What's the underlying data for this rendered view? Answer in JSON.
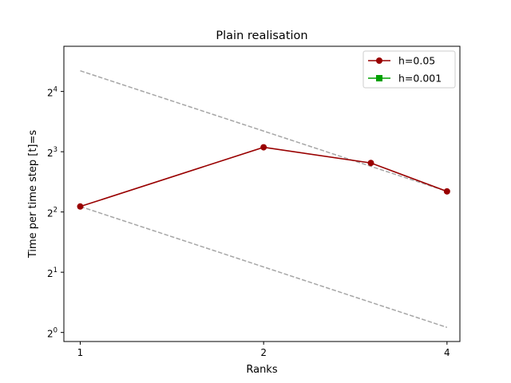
{
  "chart_data": {
    "type": "line",
    "title": "Plain realisation",
    "xlabel": "Ranks",
    "ylabel": "Time per time step [t]=s",
    "x_scale": "log2",
    "y_scale": "log2",
    "xlim": [
      0.94,
      4.2
    ],
    "ylim_exponent": [
      -0.15,
      4.75
    ],
    "x_ticks": [
      {
        "value": 1,
        "label": "1"
      },
      {
        "value": 2,
        "label": "2"
      },
      {
        "value": 4,
        "label": "4"
      }
    ],
    "y_ticks": [
      {
        "exponent": 0,
        "base": "2",
        "exp": "0"
      },
      {
        "exponent": 1,
        "base": "2",
        "exp": "1"
      },
      {
        "exponent": 2,
        "base": "2",
        "exp": "2"
      },
      {
        "exponent": 3,
        "base": "2",
        "exp": "3"
      },
      {
        "exponent": 4,
        "base": "2",
        "exp": "4"
      }
    ],
    "grid": false,
    "legend_position": "top-right",
    "series": [
      {
        "name": "h=0.05",
        "color": "#990000",
        "marker": "circle",
        "points": [
          {
            "x": 1,
            "y": 4.26
          },
          {
            "x": 2,
            "y": 8.42
          },
          {
            "x": 3,
            "y": 7.03
          },
          {
            "x": 4,
            "y": 5.07
          }
        ]
      },
      {
        "name": "h=0.001",
        "color": "#00a000",
        "marker": "square",
        "points": []
      }
    ],
    "reference_lines": [
      {
        "color": "#a6a6a6",
        "points": [
          {
            "x": 1,
            "y": 20.3
          },
          {
            "x": 4,
            "y": 5.07
          }
        ]
      },
      {
        "color": "#a6a6a6",
        "points": [
          {
            "x": 1,
            "y": 4.26
          },
          {
            "x": 4,
            "y": 1.06
          }
        ]
      }
    ]
  }
}
